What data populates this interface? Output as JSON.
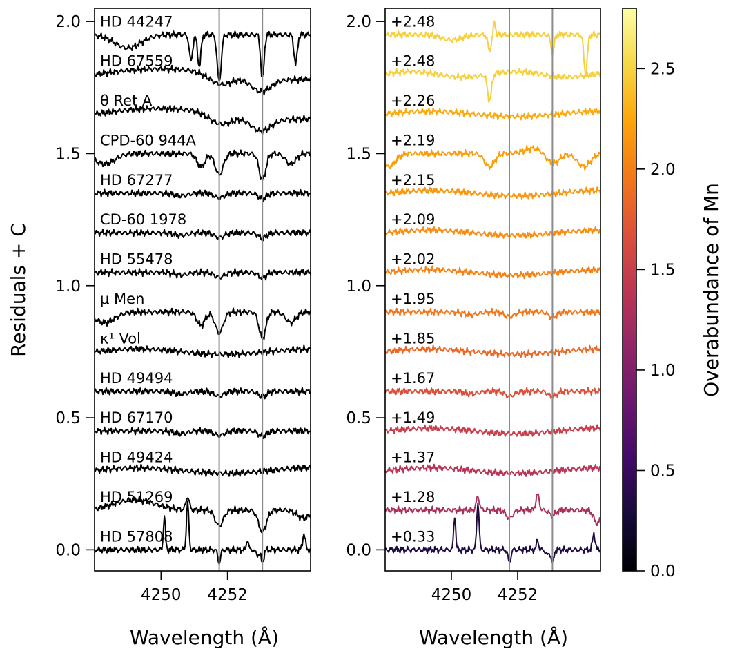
{
  "chart_data": [
    {
      "type": "line",
      "panel": "left",
      "xlabel": "Wavelength (Å)",
      "ylabel": "Residuals + C",
      "xlim": [
        4248.0,
        4254.5
      ],
      "ylim": [
        -0.08,
        2.05
      ],
      "xticks": [
        4250,
        4252
      ],
      "xtick_labels": [
        "4250",
        "4252"
      ],
      "yticks": [
        0.0,
        0.5,
        1.0,
        1.5,
        2.0
      ],
      "ytick_labels": [
        "0.0",
        "0.5",
        "1.0",
        "1.5",
        "2.0"
      ],
      "reference_lines_x": [
        4251.75,
        4253.05
      ],
      "line_color": "#000000",
      "series": [
        {
          "name": "HD 44247",
          "offset": 1.95,
          "profile": "strong"
        },
        {
          "name": "HD 67559",
          "offset": 1.8,
          "profile": "broad"
        },
        {
          "name": "θ Ret A",
          "offset": 1.65,
          "profile": "broad"
        },
        {
          "name": "CPD-60 944A",
          "offset": 1.5,
          "profile": "medium"
        },
        {
          "name": "HD 67277",
          "offset": 1.35,
          "profile": "weak"
        },
        {
          "name": "CD-60 1978",
          "offset": 1.2,
          "profile": "weak"
        },
        {
          "name": "HD 55478",
          "offset": 1.05,
          "profile": "weak"
        },
        {
          "name": "μ Men",
          "offset": 0.9,
          "profile": "medium"
        },
        {
          "name": "κ¹ Vol",
          "offset": 0.75,
          "profile": "flat"
        },
        {
          "name": "HD 49494",
          "offset": 0.6,
          "profile": "weak"
        },
        {
          "name": "HD 67170",
          "offset": 0.45,
          "profile": "weak"
        },
        {
          "name": "HD 49424",
          "offset": 0.3,
          "profile": "flat"
        },
        {
          "name": "HD 51269",
          "offset": 0.15,
          "profile": "peaky-absorb"
        },
        {
          "name": "HD 57808",
          "offset": 0.0,
          "profile": "emission"
        }
      ]
    },
    {
      "type": "line",
      "panel": "right",
      "xlabel": "Wavelength (Å)",
      "xlim": [
        4248.0,
        4254.5
      ],
      "ylim": [
        -0.08,
        2.05
      ],
      "xticks": [
        4250,
        4252
      ],
      "xtick_labels": [
        "4250",
        "4252"
      ],
      "yticks": [
        0.0,
        0.5,
        1.0,
        1.5,
        2.0
      ],
      "ytick_labels": [
        "0.0",
        "0.5",
        "1.0",
        "1.5",
        "2.0"
      ],
      "reference_lines_x": [
        4251.75,
        4253.05
      ],
      "colorbar": {
        "label": "Overabundance of Mn",
        "range": [
          0.0,
          2.8
        ],
        "ticks": [
          0.0,
          0.5,
          1.0,
          1.5,
          2.0,
          2.5
        ],
        "tick_labels": [
          "0.0",
          "0.5",
          "1.0",
          "1.5",
          "2.0",
          "2.5"
        ],
        "colormap": "inferno"
      },
      "series": [
        {
          "name": "+2.48",
          "offset": 1.95,
          "mn": 2.48,
          "profile": "r-strong"
        },
        {
          "name": "+2.48",
          "offset": 1.8,
          "mn": 2.48,
          "profile": "r-dip"
        },
        {
          "name": "+2.26",
          "offset": 1.65,
          "mn": 2.26,
          "profile": "flat"
        },
        {
          "name": "+2.19",
          "offset": 1.5,
          "mn": 2.19,
          "profile": "r-medium"
        },
        {
          "name": "+2.15",
          "offset": 1.35,
          "mn": 2.15,
          "profile": "flat"
        },
        {
          "name": "+2.09",
          "offset": 1.2,
          "mn": 2.09,
          "profile": "flat"
        },
        {
          "name": "+2.02",
          "offset": 1.05,
          "mn": 2.02,
          "profile": "flat"
        },
        {
          "name": "+1.95",
          "offset": 0.9,
          "mn": 1.95,
          "profile": "weak"
        },
        {
          "name": "+1.85",
          "offset": 0.75,
          "mn": 1.85,
          "profile": "flat"
        },
        {
          "name": "+1.67",
          "offset": 0.6,
          "mn": 1.67,
          "profile": "weak"
        },
        {
          "name": "+1.49",
          "offset": 0.45,
          "mn": 1.49,
          "profile": "flat"
        },
        {
          "name": "+1.37",
          "offset": 0.3,
          "mn": 1.37,
          "profile": "flat"
        },
        {
          "name": "+1.28",
          "offset": 0.15,
          "mn": 1.28,
          "profile": "r-peaky"
        },
        {
          "name": "+0.33",
          "offset": 0.0,
          "mn": 0.33,
          "profile": "emission"
        }
      ]
    }
  ]
}
